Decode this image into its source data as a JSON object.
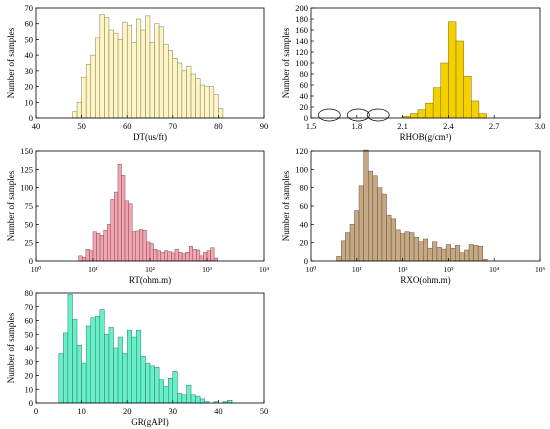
{
  "chart_data": [
    {
      "type": "bar",
      "xlabel": "DT(us/ft)",
      "ylabel": "Number of samples",
      "xscale": "linear",
      "xlim": [
        40,
        90
      ],
      "ylim": [
        0,
        70
      ],
      "xticks": [
        "40",
        "50",
        "60",
        "70",
        "80",
        "90"
      ],
      "yticks": [
        "0",
        "10",
        "20",
        "30",
        "40",
        "50",
        "60",
        "70"
      ],
      "color": "#fdf5c2",
      "bin_edges": [
        48,
        49,
        50,
        51,
        52,
        53,
        54,
        55,
        56,
        57,
        58,
        59,
        60,
        61,
        62,
        63,
        64,
        65,
        66,
        67,
        68,
        69,
        70,
        71,
        72,
        73,
        74,
        75,
        76,
        77,
        78,
        79,
        80,
        81
      ],
      "values": [
        4,
        10,
        26,
        34,
        40,
        51,
        66,
        64,
        56,
        54,
        50,
        61,
        59,
        48,
        63,
        56,
        65,
        48,
        60,
        58,
        47,
        43,
        38,
        35,
        30,
        33,
        28,
        25,
        21,
        20,
        20,
        15,
        6
      ]
    },
    {
      "type": "bar",
      "xlabel": "RHOB(g/cm³)",
      "ylabel": "Number of samples",
      "xscale": "linear",
      "xlim": [
        1.5,
        3.0
      ],
      "ylim": [
        0,
        200
      ],
      "xticks": [
        "1.5",
        "1.8",
        "2.1",
        "2.4",
        "2.7",
        "3.0"
      ],
      "yticks": [
        "0",
        "20",
        "40",
        "60",
        "80",
        "100",
        "120",
        "140",
        "160",
        "180",
        "200"
      ],
      "color": "#f5d000",
      "annotations": [
        "ellipse around 1.62",
        "ellipse around 1.81",
        "ellipse around 1.94"
      ],
      "bin_edges": [
        2.1,
        2.15,
        2.2,
        2.25,
        2.3,
        2.35,
        2.4,
        2.45,
        2.5,
        2.55,
        2.6,
        2.65
      ],
      "values": [
        3,
        8,
        15,
        27,
        55,
        100,
        175,
        140,
        76,
        31,
        8
      ]
    },
    {
      "type": "bar",
      "xlabel": "RT(ohm.m)",
      "ylabel": "Number of samples",
      "xscale": "log",
      "xlim": [
        1,
        10000
      ],
      "ylim": [
        0,
        150
      ],
      "xticks": [
        "10⁰",
        "10¹",
        "10²",
        "10³",
        "10⁴"
      ],
      "yticks": [
        "0",
        "25",
        "50",
        "75",
        "100",
        "125",
        "150"
      ],
      "color": "#f4a3af",
      "bin_edges": [
        5.6,
        6.5,
        7.5,
        8.7,
        10,
        11.5,
        13.3,
        15.4,
        17.8,
        20.5,
        23.7,
        27.4,
        31.6,
        36.5,
        42.2,
        48.7,
        56.2,
        65,
        75,
        86.6,
        100,
        115,
        133,
        154,
        178,
        205,
        237,
        274,
        316,
        365,
        422,
        487,
        562,
        650,
        750,
        866,
        1000,
        1155,
        1334,
        1540
      ],
      "values": [
        7,
        5,
        16,
        14,
        40,
        38,
        35,
        42,
        50,
        84,
        94,
        132,
        117,
        82,
        78,
        40,
        41,
        43,
        42,
        26,
        24,
        16,
        14,
        12,
        14,
        13,
        11,
        16,
        12,
        10,
        12,
        20,
        16,
        15,
        7,
        12,
        14,
        18,
        4
      ]
    },
    {
      "type": "bar",
      "xlabel": "RXO(ohm.m)",
      "ylabel": "Number of samples",
      "xscale": "log",
      "xlim": [
        1,
        100000
      ],
      "ylim": [
        0,
        120
      ],
      "xticks": [
        "10⁰",
        "10¹",
        "10²",
        "10³",
        "10⁴",
        "10⁵"
      ],
      "yticks": [
        "0",
        "20",
        "40",
        "60",
        "80",
        "100",
        "120"
      ],
      "color": "#c6a883",
      "bin_edges": [
        3.6,
        4.6,
        5.6,
        7.1,
        8.9,
        11.2,
        14.1,
        17.8,
        22.4,
        28.2,
        35.5,
        44.7,
        56.2,
        70.8,
        89.1,
        112,
        141,
        178,
        224,
        282,
        355,
        447,
        562,
        708,
        891,
        1122,
        1413,
        1778,
        2239,
        2818,
        3548,
        4467,
        5623,
        7079
      ],
      "values": [
        5,
        22,
        31,
        40,
        55,
        82,
        121,
        98,
        93,
        80,
        73,
        50,
        46,
        34,
        30,
        32,
        31,
        26,
        21,
        24,
        14,
        21,
        15,
        13,
        18,
        14,
        17,
        9,
        12,
        18,
        17,
        16,
        2
      ]
    },
    {
      "type": "bar",
      "xlabel": "GR(gAPI)",
      "ylabel": "Number of samples",
      "xscale": "linear",
      "xlim": [
        0,
        50
      ],
      "ylim": [
        0,
        80
      ],
      "xticks": [
        "0",
        "10",
        "20",
        "30",
        "40",
        "50"
      ],
      "yticks": [
        "0",
        "10",
        "20",
        "30",
        "40",
        "50",
        "60",
        "70",
        "80"
      ],
      "color": "#66f0c8",
      "bin_edges": [
        5,
        6,
        7,
        8,
        9,
        10,
        11,
        12,
        13,
        14,
        15,
        16,
        17,
        18,
        19,
        20,
        21,
        22,
        23,
        24,
        25,
        26,
        27,
        28,
        29,
        30,
        31,
        32,
        33,
        34,
        35,
        36,
        37,
        38,
        39,
        40,
        41,
        42,
        43
      ],
      "values": [
        36,
        51,
        79,
        61,
        42,
        29,
        56,
        62,
        63,
        68,
        50,
        55,
        40,
        48,
        36,
        53,
        48,
        53,
        34,
        29,
        27,
        26,
        17,
        12,
        18,
        23,
        7,
        6,
        13,
        6,
        5,
        3,
        1,
        0,
        1,
        0,
        1,
        2
      ]
    }
  ]
}
